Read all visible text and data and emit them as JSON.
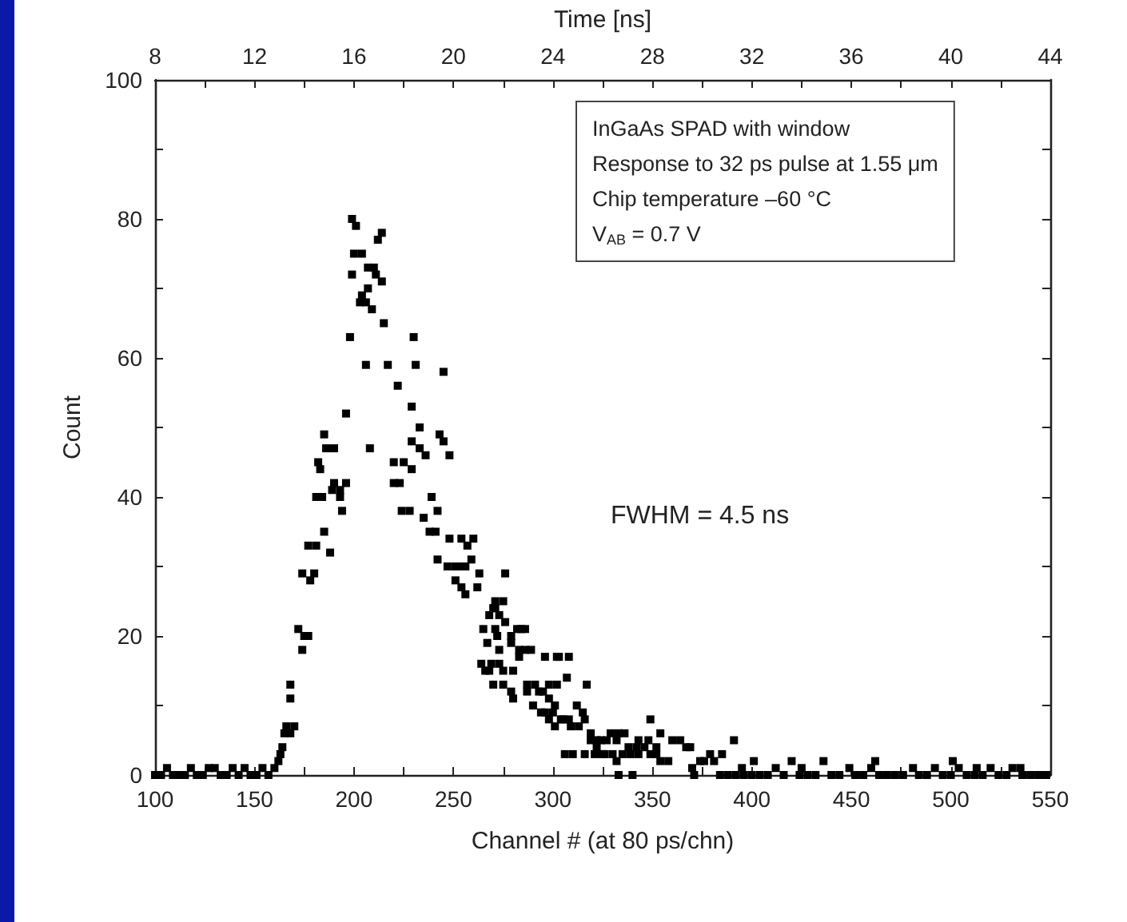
{
  "chart_data": {
    "type": "scatter",
    "xlabel": "Channel # (at 80 ps/chn)",
    "ylabel": "Count",
    "x2label": "Time [ns]",
    "annotations": [
      "InGaAs SPAD with window\nResponse to 32 ps pulse at 1.55 μm\nChip temperature –60 °C\nV$_{AB}$ = 0.7 V",
      "FWHM = 4.5 ns"
    ],
    "xlim": [
      100,
      550
    ],
    "xticks": [
      100,
      {
        "value": 125,
        "label": null
      },
      150,
      {
        "value": 175,
        "label": null
      },
      200,
      {
        "value": 225,
        "label": null
      },
      250,
      {
        "value": 275,
        "label": null
      },
      300,
      {
        "value": 325,
        "label": null
      },
      350,
      {
        "value": 375,
        "label": null
      },
      400,
      {
        "value": 425,
        "label": null
      },
      450,
      {
        "value": 475,
        "label": null
      },
      500,
      {
        "value": 525,
        "label": null
      },
      550
    ],
    "x2lim": [
      8,
      44
    ],
    "x2ticks": [
      8,
      {
        "value": 10,
        "label": null
      },
      12,
      {
        "value": 14,
        "label": null
      },
      16,
      {
        "value": 18,
        "label": null
      },
      20,
      {
        "value": 22,
        "label": null
      },
      24,
      {
        "value": 26,
        "label": null
      },
      28,
      {
        "value": 30,
        "label": null
      },
      32,
      {
        "value": 34,
        "label": null
      },
      36,
      {
        "value": 38,
        "label": null
      },
      40,
      {
        "value": 42,
        "label": null
      },
      44
    ],
    "ylim": [
      0,
      100
    ],
    "yticks": [
      0,
      {
        "value": 10,
        "label": null
      },
      20,
      {
        "value": 30,
        "label": null
      },
      40,
      {
        "value": 50,
        "label": null
      },
      60,
      {
        "value": 70,
        "label": null
      },
      80,
      {
        "value": 90,
        "label": null
      },
      100
    ],
    "grid": false,
    "marker": "square",
    "series": [
      {
        "color": "#000000",
        "x": [
          100,
          103,
          106,
          109,
          112,
          115,
          118,
          121,
          124,
          127,
          130,
          133,
          136,
          139,
          142,
          145,
          148,
          151,
          154,
          157,
          160,
          162,
          163,
          164,
          165,
          166,
          168,
          170,
          168,
          168,
          172,
          175,
          177,
          174,
          174,
          178,
          180,
          177,
          181,
          181,
          184,
          185,
          188,
          183,
          182,
          190,
          189,
          193,
          185,
          186,
          190,
          193,
          196,
          194,
          196,
          198,
          199,
          199,
          201,
          200,
          204,
          204,
          206,
          203,
          207,
          210,
          207,
          209,
          211,
          214,
          212,
          214,
          215,
          206,
          217,
          208,
          222,
          220,
          225,
          229,
          220,
          223,
          224,
          228,
          231,
          230,
          229,
          233,
          229,
          243,
          245,
          233,
          236,
          248,
          245,
          239,
          242,
          235,
          238,
          241,
          248,
          254,
          260,
          257,
          259,
          242,
          247,
          251,
          253,
          256,
          251,
          254,
          256,
          263,
          262,
          270,
          268,
          265,
          267,
          268,
          276,
          271,
          275,
          271,
          273,
          276,
          282,
          286,
          271,
          279,
          273,
          283,
          289,
          269,
          273,
          280,
          302,
          308,
          287,
          293,
          298,
          302,
          317,
          275,
          296,
          300,
          304,
          308,
          312,
          313,
          319,
          324,
          316,
          321,
          327,
          332,
          338,
          343,
          348,
          354,
          340,
          325,
          332,
          343,
          284,
          272,
          279,
          286,
          283,
          296,
          303,
          264,
          266,
          275,
          270,
          307,
          279,
          280,
          287,
          291,
          295,
          298,
          301,
          290,
          294,
          298,
          301,
          305,
          309,
          315,
          316,
          319,
          322,
          329,
          333,
          336,
          306,
          310,
          322,
          326,
          330,
          335,
          339,
          342,
          346,
          349,
          352,
          354,
          358,
          333,
          349,
          352,
          360,
          364,
          367,
          369,
          370,
          371,
          374,
          376,
          379,
          381,
          391,
          385,
          395,
          401,
          412,
          420,
          425,
          436,
          449,
          460,
          462,
          481,
          492,
          501,
          504,
          513,
          520,
          531,
          535,
          384,
          388,
          392,
          396,
          400,
          404,
          408,
          416,
          424,
          428,
          432,
          440,
          444,
          452,
          456,
          464,
          468,
          472,
          476,
          484,
          488,
          496,
          500,
          508,
          512,
          516,
          524,
          528,
          536,
          540,
          544,
          548
        ],
        "values": [
          0,
          0,
          1,
          0,
          0,
          0,
          1,
          0,
          0,
          1,
          1,
          0,
          0,
          1,
          0,
          1,
          0,
          0,
          1,
          0,
          1,
          2,
          3,
          4,
          6,
          7,
          6,
          7,
          11,
          13,
          21,
          20,
          20,
          18,
          29,
          28,
          29,
          33,
          33,
          40,
          40,
          35,
          32,
          44,
          45,
          42,
          41,
          41,
          49,
          47,
          47,
          40,
          42,
          38,
          52,
          63,
          72,
          80,
          79,
          75,
          75,
          69,
          68,
          68,
          73,
          73,
          70,
          67,
          72,
          71,
          77,
          78,
          65,
          59,
          59,
          47,
          56,
          45,
          45,
          44,
          42,
          42,
          38,
          38,
          59,
          63,
          53,
          50,
          48,
          49,
          48,
          47,
          46,
          46,
          58,
          40,
          38,
          37,
          35,
          35,
          34,
          34,
          34,
          33,
          31,
          31,
          30,
          30,
          30,
          30,
          28,
          27,
          26,
          29,
          27,
          24,
          23,
          21,
          19,
          15,
          29,
          25,
          25,
          24,
          23,
          22,
          21,
          21,
          21,
          20,
          18,
          18,
          18,
          16,
          16,
          15,
          17,
          17,
          12,
          12,
          13,
          13,
          13,
          13,
          9,
          9,
          8,
          8,
          10,
          7,
          5,
          5,
          3,
          3,
          5,
          5,
          4,
          5,
          5,
          6,
          0,
          3,
          2,
          3,
          21,
          20,
          19,
          18,
          17,
          17,
          17,
          16,
          15,
          15,
          13,
          14,
          12,
          11,
          13,
          13,
          12,
          11,
          10,
          10,
          9,
          8,
          7,
          8,
          7,
          9,
          8,
          6,
          5,
          6,
          6,
          6,
          3,
          3,
          4,
          3,
          3,
          3,
          3,
          4,
          4,
          3,
          3,
          2,
          2,
          0,
          8,
          4,
          5,
          5,
          4,
          4,
          1,
          0,
          2,
          2,
          3,
          2,
          5,
          3,
          1,
          2,
          1,
          2,
          1,
          2,
          1,
          1,
          2,
          1,
          1,
          2,
          1,
          1,
          1,
          1,
          1,
          0,
          0,
          0,
          0,
          0,
          0,
          0,
          0,
          0,
          0,
          0,
          0,
          0,
          0,
          0,
          0,
          0,
          0,
          0,
          0,
          0,
          0,
          0,
          0,
          0,
          0,
          0,
          0,
          0,
          0,
          0,
          0
        ]
      }
    ]
  }
}
